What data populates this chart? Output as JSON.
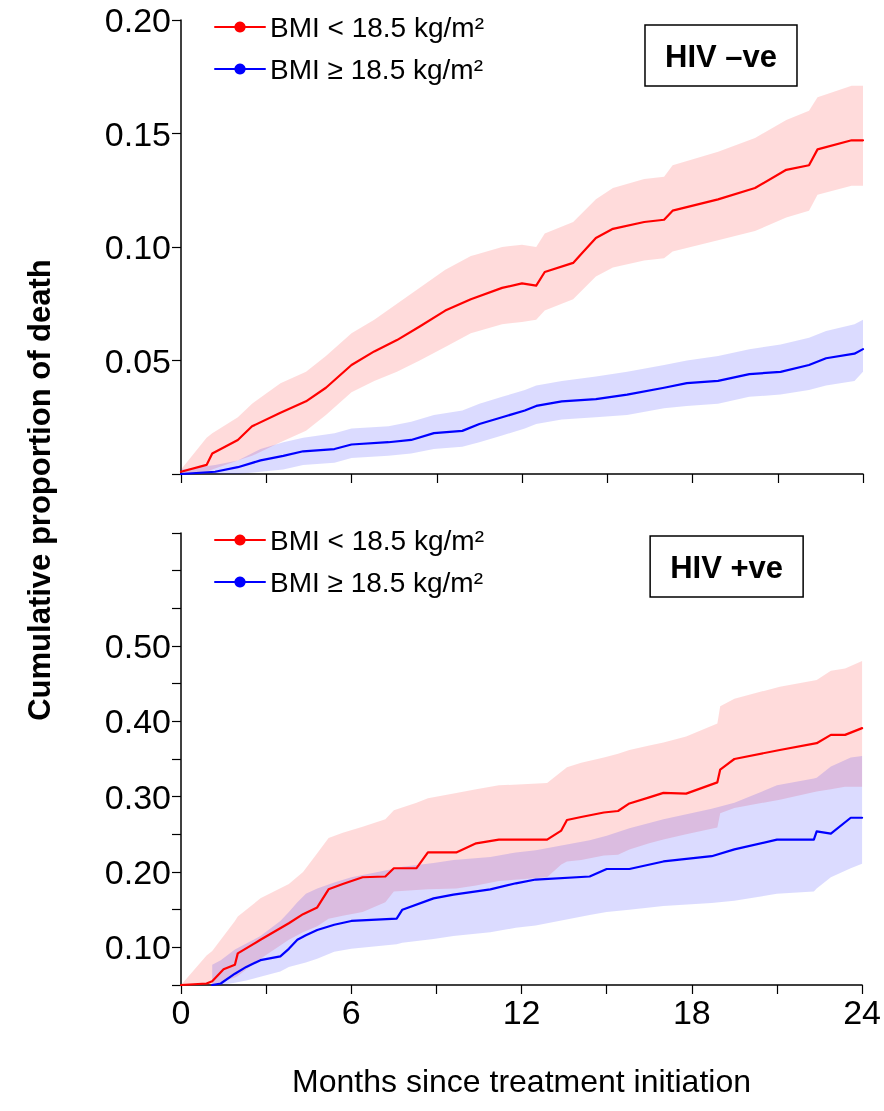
{
  "chart_data": [
    {
      "type": "line",
      "ylabel": "Cumulative proportion of death",
      "annotations": [
        "HIV –ve"
      ],
      "legend": "top left",
      "marker": "none",
      "tick_labels": "y",
      "xlim": [
        0,
        24
      ],
      "xticks": [
        0,
        {
          "value": 3,
          "label": null
        },
        6,
        {
          "value": 9,
          "label": null
        },
        12,
        {
          "value": 15,
          "label": null
        },
        18,
        {
          "value": 21,
          "label": null
        },
        24
      ],
      "ylim": [
        0,
        0.2
      ],
      "yticks": [
        {
          "value": 0,
          "label": null
        },
        0.05,
        {
          "value": 0.1,
          "label": "0.10"
        },
        0.15,
        {
          "value": 0.2,
          "label": "0.20"
        }
      ],
      "series": [
        {
          "name": "BMI < 18.5 kg/m²",
          "color": "#ff0000",
          "x": [
            0,
            0.9,
            1.1,
            2.0,
            2.5,
            3.5,
            4.4,
            5.1,
            6.0,
            6.8,
            7.6,
            8.4,
            9.3,
            10.2,
            11.3,
            12.0,
            12.5,
            12.8,
            13.8,
            14.6,
            15.2,
            16.3,
            17.0,
            17.3,
            18.9,
            20.2,
            21.3,
            22.1,
            22.4,
            23.6,
            24
          ],
          "values": [
            0.001,
            0.004,
            0.009,
            0.015,
            0.021,
            0.027,
            0.032,
            0.038,
            0.048,
            0.054,
            0.059,
            0.065,
            0.072,
            0.077,
            0.082,
            0.084,
            0.083,
            0.089,
            0.093,
            0.104,
            0.108,
            0.111,
            0.112,
            0.116,
            0.121,
            0.126,
            0.134,
            0.136,
            0.143,
            0.147,
            0.147
          ],
          "lower": [
            0,
            0.001,
            0.002,
            0.006,
            0.008,
            0.014,
            0.019,
            0.026,
            0.036,
            0.041,
            0.045,
            0.05,
            0.056,
            0.062,
            0.066,
            0.067,
            0.068,
            0.072,
            0.077,
            0.087,
            0.091,
            0.094,
            0.095,
            0.098,
            0.103,
            0.107,
            0.113,
            0.116,
            0.123,
            0.127,
            0.127
          ],
          "upper": [
            0.002,
            0.016,
            0.018,
            0.025,
            0.031,
            0.04,
            0.045,
            0.052,
            0.062,
            0.068,
            0.075,
            0.082,
            0.09,
            0.096,
            0.1,
            0.101,
            0.1,
            0.106,
            0.111,
            0.121,
            0.126,
            0.13,
            0.131,
            0.136,
            0.142,
            0.148,
            0.156,
            0.16,
            0.166,
            0.171,
            0.171
          ]
        },
        {
          "name": "BMI ≥ 18.5 kg/m²",
          "color": "#0000ff",
          "x": [
            0,
            1.2,
            2.0,
            2.8,
            3.6,
            4.3,
            5.4,
            6.0,
            7.3,
            8.1,
            8.9,
            9.9,
            10.5,
            11.3,
            12.1,
            12.5,
            13.4,
            14.6,
            15.7,
            17.0,
            17.8,
            18.9,
            20.0,
            21.1,
            22.1,
            22.7,
            23.7,
            24
          ],
          "values": [
            0,
            0.001,
            0.003,
            0.006,
            0.008,
            0.01,
            0.011,
            0.013,
            0.014,
            0.015,
            0.018,
            0.019,
            0.022,
            0.025,
            0.028,
            0.03,
            0.032,
            0.033,
            0.035,
            0.038,
            0.04,
            0.041,
            0.044,
            0.045,
            0.048,
            0.051,
            0.053,
            0.055
          ],
          "lower": [
            0,
            0,
            0,
            0.001,
            0.002,
            0.004,
            0.005,
            0.007,
            0.008,
            0.009,
            0.011,
            0.012,
            0.014,
            0.017,
            0.02,
            0.022,
            0.024,
            0.025,
            0.026,
            0.029,
            0.03,
            0.031,
            0.034,
            0.035,
            0.037,
            0.039,
            0.041,
            0.045
          ],
          "upper": [
            0.002,
            0.004,
            0.006,
            0.011,
            0.014,
            0.016,
            0.018,
            0.02,
            0.021,
            0.023,
            0.026,
            0.028,
            0.031,
            0.034,
            0.037,
            0.039,
            0.041,
            0.043,
            0.045,
            0.048,
            0.05,
            0.052,
            0.055,
            0.057,
            0.06,
            0.063,
            0.066,
            0.068
          ]
        }
      ]
    },
    {
      "type": "line",
      "xlabel": "Months since treatment initiation",
      "annotations": [
        "HIV +ve"
      ],
      "legend": "top left",
      "marker": "none",
      "xlim": [
        0,
        24
      ],
      "xticks": [
        0,
        {
          "value": 3,
          "label": null
        },
        6,
        {
          "value": 9,
          "label": null
        },
        12,
        {
          "value": 15,
          "label": null
        },
        18,
        {
          "value": 21,
          "label": null
        },
        24
      ],
      "ylim": [
        0.05,
        0.65
      ],
      "yticks": [
        {
          "value": 0.05,
          "label": null
        },
        {
          "value": 0.1,
          "label": "0.10"
        },
        {
          "value": 0.15,
          "label": null
        },
        {
          "value": 0.2,
          "label": "0.20"
        },
        {
          "value": 0.25,
          "label": null
        },
        {
          "value": 0.3,
          "label": "0.30"
        },
        {
          "value": 0.35,
          "label": null
        },
        {
          "value": 0.4,
          "label": "0.40"
        },
        {
          "value": 0.45,
          "label": null
        },
        {
          "value": 0.5,
          "label": "0.50"
        },
        {
          "value": 0.55,
          "label": null
        },
        {
          "value": 0.6,
          "label": null
        },
        {
          "value": 0.65,
          "label": null
        }
      ],
      "series": [
        {
          "name": "BMI < 18.5 kg/m²",
          "color": "#ff0000",
          "x": [
            0,
            0.9,
            1.1,
            1.5,
            1.9,
            2.0,
            2.8,
            3.8,
            4.3,
            4.8,
            5.2,
            5.7,
            6.4,
            7.2,
            7.5,
            8.3,
            8.7,
            9.7,
            10.4,
            11.2,
            12.9,
            13.4,
            13.6,
            14.1,
            14.9,
            15.4,
            15.8,
            16.5,
            17.0,
            17.8,
            18.9,
            19.0,
            19.5,
            21.1,
            22.4,
            22.9,
            23.4,
            24
          ],
          "values": [
            0.05,
            0.052,
            0.055,
            0.071,
            0.077,
            0.092,
            0.11,
            0.132,
            0.144,
            0.153,
            0.177,
            0.184,
            0.193,
            0.194,
            0.205,
            0.205,
            0.226,
            0.226,
            0.238,
            0.243,
            0.243,
            0.255,
            0.269,
            0.273,
            0.279,
            0.281,
            0.291,
            0.299,
            0.305,
            0.304,
            0.319,
            0.336,
            0.35,
            0.362,
            0.371,
            0.382,
            0.382,
            0.391
          ],
          "lower": [
            0.05,
            0.05,
            0.051,
            0.055,
            0.06,
            0.062,
            0.085,
            0.11,
            0.12,
            0.128,
            0.138,
            0.142,
            0.147,
            0.16,
            0.174,
            0.176,
            0.177,
            0.178,
            0.182,
            0.188,
            0.193,
            0.21,
            0.214,
            0.216,
            0.222,
            0.223,
            0.23,
            0.238,
            0.243,
            0.25,
            0.259,
            0.278,
            0.285,
            0.296,
            0.307,
            0.31,
            0.313,
            0.313
          ],
          "upper": [
            0.05,
            0.089,
            0.095,
            0.115,
            0.135,
            0.141,
            0.165,
            0.184,
            0.2,
            0.225,
            0.245,
            0.252,
            0.26,
            0.27,
            0.282,
            0.292,
            0.298,
            0.305,
            0.31,
            0.315,
            0.318,
            0.333,
            0.339,
            0.345,
            0.352,
            0.357,
            0.362,
            0.368,
            0.372,
            0.38,
            0.397,
            0.42,
            0.43,
            0.446,
            0.455,
            0.467,
            0.47,
            0.48
          ]
        },
        {
          "name": "BMI ≥ 18.5 kg/m²",
          "color": "#0000ff",
          "x": [
            1.1,
            1.4,
            1.9,
            2.3,
            2.8,
            3.5,
            3.8,
            4.1,
            4.4,
            4.8,
            5.4,
            6.0,
            7.6,
            7.8,
            8.9,
            9.6,
            10.9,
            11.8,
            12.5,
            14.4,
            15.0,
            15.8,
            17.0,
            18.7,
            19.5,
            21.0,
            22.3,
            22.4,
            22.9,
            23.6,
            24
          ],
          "values": [
            0.05,
            0.052,
            0.065,
            0.074,
            0.083,
            0.088,
            0.098,
            0.11,
            0.116,
            0.123,
            0.13,
            0.135,
            0.138,
            0.15,
            0.165,
            0.17,
            0.177,
            0.185,
            0.19,
            0.194,
            0.204,
            0.204,
            0.214,
            0.221,
            0.23,
            0.243,
            0.243,
            0.254,
            0.251,
            0.272,
            0.272
          ],
          "lower": [
            0.05,
            0.05,
            0.053,
            0.056,
            0.061,
            0.068,
            0.074,
            0.077,
            0.08,
            0.085,
            0.094,
            0.098,
            0.104,
            0.106,
            0.111,
            0.115,
            0.12,
            0.126,
            0.129,
            0.143,
            0.147,
            0.15,
            0.155,
            0.159,
            0.162,
            0.171,
            0.174,
            0.178,
            0.193,
            0.205,
            0.211
          ],
          "upper": [
            0.077,
            0.083,
            0.097,
            0.105,
            0.115,
            0.135,
            0.147,
            0.16,
            0.171,
            0.178,
            0.186,
            0.193,
            0.205,
            0.207,
            0.212,
            0.216,
            0.22,
            0.226,
            0.229,
            0.242,
            0.248,
            0.258,
            0.27,
            0.284,
            0.292,
            0.315,
            0.324,
            0.325,
            0.34,
            0.352,
            0.354
          ]
        }
      ]
    }
  ]
}
